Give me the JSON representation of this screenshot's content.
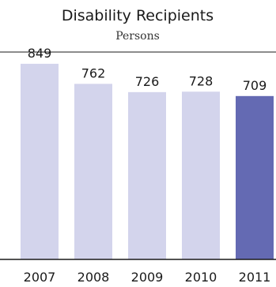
{
  "chart_data": {
    "type": "bar",
    "title": "Disability Recipients",
    "subtitle": "Persons",
    "categories": [
      "2007",
      "2008",
      "2009",
      "2010",
      "2011"
    ],
    "values": [
      849,
      762,
      726,
      728,
      709
    ],
    "highlight_index": 4,
    "colors": {
      "bar": "#d3d4ec",
      "highlight": "#646ab3",
      "axis": "#1a1a1a",
      "text": "#1a1a1a"
    },
    "ylim": [
      0,
      900
    ],
    "grid": false,
    "legend": "none"
  }
}
